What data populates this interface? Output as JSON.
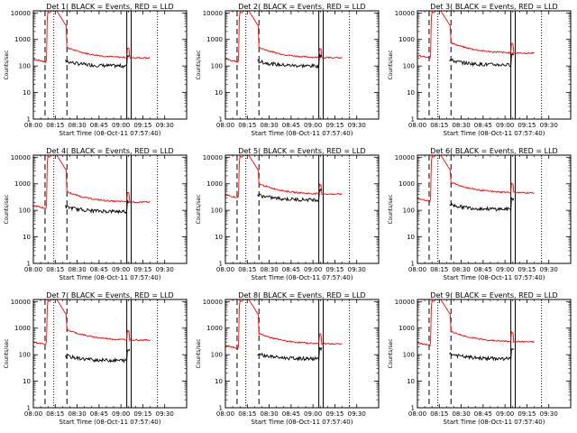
{
  "chart_data": {
    "type": "line",
    "grid_layout": "3x3",
    "x_axis": {
      "label": "Start Time (08-Oct-11 07:57:40)",
      "ticks": [
        "08:00",
        "08:15",
        "08:30",
        "08:45",
        "09:00",
        "09:15",
        "09:30"
      ],
      "range_minutes": [
        0,
        105
      ]
    },
    "y_axis": {
      "label": "Counts/sec",
      "scale": "log",
      "ticks": [
        "1",
        "10",
        "100",
        "1000",
        "10000"
      ],
      "range": [
        1,
        12000
      ]
    },
    "series_colors": {
      "events": "#000000",
      "lld": "#ff0000"
    },
    "panels": [
      {
        "title": "Det 1( BLACK = Events, RED = LLD",
        "dashed_at": [
          8,
          23
        ],
        "dotted_at": [
          14,
          85
        ],
        "solid_at": [
          64,
          67
        ],
        "events_base": 100,
        "lld_base": 200,
        "lld_start": 180
      },
      {
        "title": "Det 2( BLACK = Events, RED = LLD",
        "dashed_at": [
          8,
          23
        ],
        "dotted_at": [
          14,
          85
        ],
        "solid_at": [
          64,
          67
        ],
        "events_base": 100,
        "lld_base": 200,
        "lld_start": 180
      },
      {
        "title": "Det 3( BLACK = Events, RED = LLD",
        "dashed_at": [
          8,
          23
        ],
        "dotted_at": [
          14,
          85
        ],
        "solid_at": [
          64,
          67
        ],
        "events_base": 110,
        "lld_base": 300,
        "lld_start": 250
      },
      {
        "title": "Det 4( BLACK = Events, RED = LLD",
        "dashed_at": [
          8,
          23
        ],
        "dotted_at": [
          14,
          85
        ],
        "solid_at": [
          64,
          67
        ],
        "events_base": 90,
        "lld_base": 200,
        "lld_start": 150
      },
      {
        "title": "Det 5( BLACK = Events, RED = LLD",
        "dashed_at": [
          8,
          23
        ],
        "dotted_at": [
          14,
          85
        ],
        "solid_at": [
          64,
          67
        ],
        "events_base": 250,
        "lld_base": 400,
        "lld_start": 380
      },
      {
        "title": "Det 6( BLACK = Events, RED = LLD",
        "dashed_at": [
          8,
          23
        ],
        "dotted_at": [
          14,
          85
        ],
        "solid_at": [
          64,
          67
        ],
        "events_base": 110,
        "lld_base": 450,
        "lld_start": 280
      },
      {
        "title": "Det 7( BLACK = Events, RED = LLD",
        "dashed_at": [
          8,
          23
        ],
        "dotted_at": [
          14,
          85
        ],
        "solid_at": [
          64,
          67
        ],
        "events_base": 60,
        "lld_base": 350,
        "lld_start": 300
      },
      {
        "title": "Det 8( BLACK = Events, RED = LLD",
        "dashed_at": [
          8,
          23
        ],
        "dotted_at": [
          14,
          85
        ],
        "solid_at": [
          64,
          67
        ],
        "events_base": 70,
        "lld_base": 250,
        "lld_start": 220
      },
      {
        "title": "Det 9( BLACK = Events, RED = LLD",
        "dashed_at": [
          8,
          23
        ],
        "dotted_at": [
          14,
          85
        ],
        "solid_at": [
          64,
          67
        ],
        "events_base": 70,
        "lld_base": 300,
        "lld_start": 280
      }
    ]
  }
}
